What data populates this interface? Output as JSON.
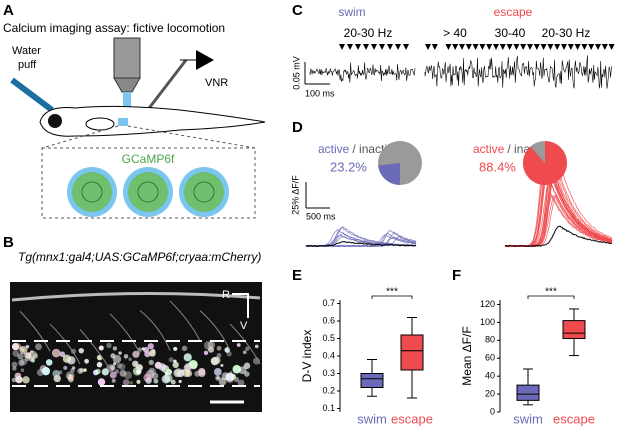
{
  "panels": {
    "A": {
      "label": "A",
      "title": "Calcium imaging assay: fictive locomotion",
      "puff": [
        "Water",
        "puff"
      ],
      "vnr": "VNR",
      "indicator": "GCaMP6f"
    },
    "B": {
      "label": "B",
      "title": "Tg(mnx1:gal4;UAS:GCaMP6f;cryaa:mCherry)",
      "rostral": "R",
      "ventral": "V"
    },
    "C": {
      "label": "C",
      "swim": "swim",
      "escape": "escape",
      "swim_freq": "20-30 Hz",
      "escape_freqs": [
        "> 40",
        "30-40",
        "20-30 Hz"
      ],
      "vscale": "0.05 mV",
      "hscale": "100 ms"
    },
    "D": {
      "label": "D",
      "active": "active",
      "inactive": "/ inactive",
      "vscale": "25% ΔF/F",
      "hscale": "500 ms"
    },
    "E": {
      "label": "E"
    },
    "F": {
      "label": "F"
    }
  },
  "chart_data": [
    {
      "type": "pie",
      "values": [
        23.2
      ],
      "value_labels": [
        "23.2%"
      ],
      "color": "#6a6ab8",
      "rest_color": "#9a9a9a"
    },
    {
      "type": "pie",
      "values": [
        88.4
      ],
      "value_labels": [
        "88.4%"
      ],
      "color": "#ef4a4e",
      "rest_color": "#9a9a9a"
    },
    {
      "type": "box",
      "ylabel": "D-V index",
      "categories": [
        "swim",
        "escape"
      ],
      "colors": [
        "#6a6ab8",
        "#ef4a4e"
      ],
      "boxes": [
        {
          "min": 0.17,
          "q1": 0.22,
          "median": 0.27,
          "q3": 0.3,
          "max": 0.38
        },
        {
          "min": 0.16,
          "q1": 0.32,
          "median": 0.43,
          "q3": 0.52,
          "max": 0.62
        }
      ],
      "annotation": "***",
      "ylim": [
        0.08,
        0.72
      ],
      "yticks": [
        0.1,
        0.2,
        0.3,
        0.4,
        0.5,
        0.6,
        0.7
      ]
    },
    {
      "type": "box",
      "ylabel": "Mean ΔF/F",
      "categories": [
        "swim",
        "escape"
      ],
      "colors": [
        "#6a6ab8",
        "#ef4a4e"
      ],
      "boxes": [
        {
          "min": 8,
          "q1": 13,
          "median": 20,
          "q3": 30,
          "max": 48
        },
        {
          "min": 63,
          "q1": 82,
          "median": 88,
          "q3": 102,
          "max": 115
        }
      ],
      "annotation": "***",
      "ylim": [
        0,
        125
      ],
      "yticks": [
        0,
        20,
        40,
        60,
        80,
        100,
        120
      ]
    }
  ]
}
